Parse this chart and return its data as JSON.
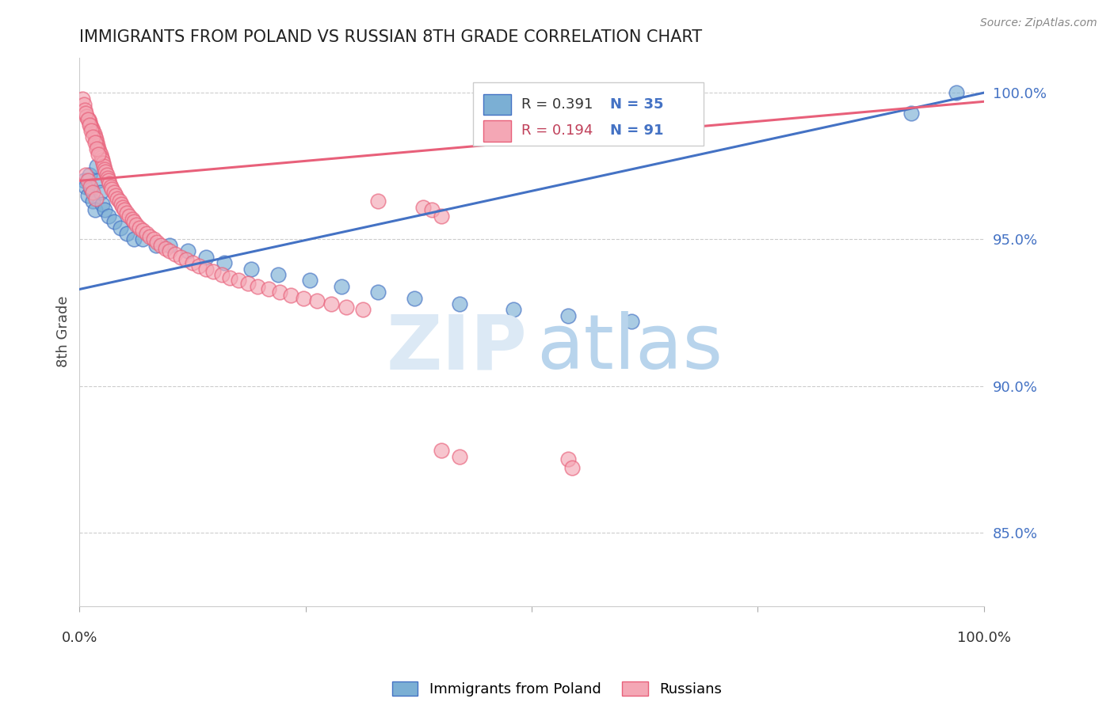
{
  "title": "IMMIGRANTS FROM POLAND VS RUSSIAN 8TH GRADE CORRELATION CHART",
  "source": "Source: ZipAtlas.com",
  "ylabel": "8th Grade",
  "xlim": [
    0.0,
    1.0
  ],
  "ylim": [
    0.825,
    1.012
  ],
  "blue_color": "#7BAFD4",
  "pink_color": "#F4A7B5",
  "blue_line_color": "#4472C4",
  "pink_line_color": "#E8607A",
  "blue_scatter_edge": "#4472C4",
  "pink_scatter_edge": "#E8607A",
  "ytick_vals": [
    0.85,
    0.9,
    0.95,
    1.0
  ],
  "ytick_labels": [
    "85.0%",
    "90.0%",
    "95.0%",
    "100.0%"
  ],
  "poland_x": [
    0.005,
    0.007,
    0.009,
    0.011,
    0.013,
    0.015,
    0.017,
    0.019,
    0.021,
    0.023,
    0.025,
    0.028,
    0.032,
    0.038,
    0.045,
    0.052,
    0.06,
    0.07,
    0.085,
    0.1,
    0.12,
    0.14,
    0.16,
    0.19,
    0.22,
    0.255,
    0.29,
    0.33,
    0.37,
    0.42,
    0.48,
    0.54,
    0.61,
    0.92,
    0.97
  ],
  "poland_y": [
    0.97,
    0.968,
    0.965,
    0.972,
    0.967,
    0.963,
    0.96,
    0.975,
    0.97,
    0.966,
    0.962,
    0.96,
    0.958,
    0.956,
    0.954,
    0.952,
    0.95,
    0.95,
    0.948,
    0.948,
    0.946,
    0.944,
    0.942,
    0.94,
    0.938,
    0.936,
    0.934,
    0.932,
    0.93,
    0.928,
    0.926,
    0.924,
    0.922,
    0.993,
    1.0
  ],
  "russia_x": [
    0.003,
    0.005,
    0.006,
    0.008,
    0.01,
    0.011,
    0.012,
    0.014,
    0.015,
    0.016,
    0.017,
    0.018,
    0.019,
    0.02,
    0.021,
    0.022,
    0.023,
    0.024,
    0.025,
    0.026,
    0.027,
    0.028,
    0.029,
    0.03,
    0.031,
    0.032,
    0.033,
    0.035,
    0.036,
    0.038,
    0.04,
    0.042,
    0.044,
    0.046,
    0.048,
    0.05,
    0.052,
    0.055,
    0.058,
    0.06,
    0.063,
    0.066,
    0.07,
    0.074,
    0.078,
    0.082,
    0.086,
    0.09,
    0.095,
    0.1,
    0.106,
    0.112,
    0.118,
    0.125,
    0.132,
    0.14,
    0.148,
    0.157,
    0.166,
    0.176,
    0.186,
    0.197,
    0.209,
    0.221,
    0.234,
    0.248,
    0.263,
    0.278,
    0.295,
    0.313,
    0.007,
    0.009,
    0.011,
    0.013,
    0.015,
    0.017,
    0.019,
    0.021,
    0.007,
    0.009,
    0.012,
    0.015,
    0.018,
    0.33,
    0.38,
    0.39,
    0.4,
    0.54,
    0.545,
    0.4,
    0.42
  ],
  "russia_y": [
    0.998,
    0.996,
    0.994,
    0.992,
    0.991,
    0.99,
    0.989,
    0.988,
    0.987,
    0.986,
    0.985,
    0.984,
    0.983,
    0.982,
    0.981,
    0.98,
    0.979,
    0.978,
    0.977,
    0.976,
    0.975,
    0.974,
    0.973,
    0.972,
    0.971,
    0.97,
    0.969,
    0.968,
    0.967,
    0.966,
    0.965,
    0.964,
    0.963,
    0.962,
    0.961,
    0.96,
    0.959,
    0.958,
    0.957,
    0.956,
    0.955,
    0.954,
    0.953,
    0.952,
    0.951,
    0.95,
    0.949,
    0.948,
    0.947,
    0.946,
    0.945,
    0.944,
    0.943,
    0.942,
    0.941,
    0.94,
    0.939,
    0.938,
    0.937,
    0.936,
    0.935,
    0.934,
    0.933,
    0.932,
    0.931,
    0.93,
    0.929,
    0.928,
    0.927,
    0.926,
    0.993,
    0.991,
    0.989,
    0.987,
    0.985,
    0.983,
    0.981,
    0.979,
    0.972,
    0.97,
    0.968,
    0.966,
    0.964,
    0.963,
    0.961,
    0.96,
    0.958,
    0.875,
    0.872,
    0.878,
    0.876
  ],
  "blue_trendline": [
    0.0,
    1.0,
    0.933,
    1.0
  ],
  "pink_trendline": [
    0.0,
    1.0,
    0.97,
    0.997
  ]
}
